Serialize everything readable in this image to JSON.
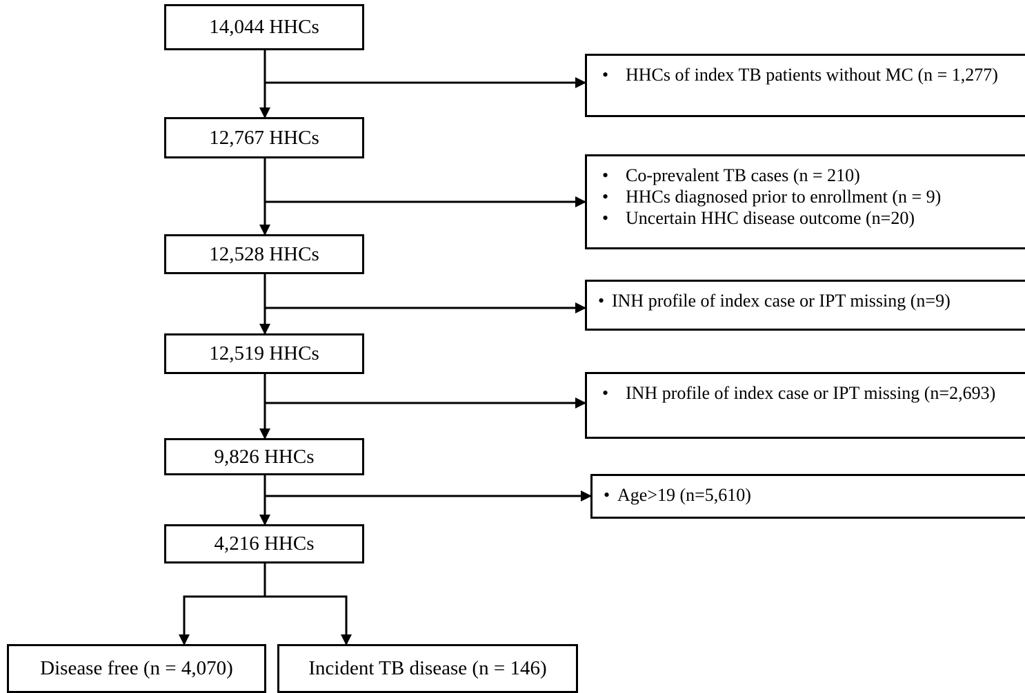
{
  "flow": {
    "steps": [
      "14,044 HHCs",
      "12,767 HHCs",
      "12,528 HHCs",
      "12,519 HHCs",
      "9,826 HHCs",
      "4,216 HHCs"
    ],
    "exclusions": [
      {
        "items": [
          "HHCs of index TB patients without MC (n = 1,277)"
        ]
      },
      {
        "items": [
          "Co-prevalent TB cases (n = 210)",
          "HHCs diagnosed prior to enrollment (n = 9)",
          "Uncertain HHC disease outcome (n=20)"
        ]
      },
      {
        "items": [
          "INH profile of index case or IPT missing (n=9)"
        ]
      },
      {
        "items": [
          "INH profile of index case or IPT missing (n=2,693)"
        ]
      },
      {
        "items": [
          "Age>19 (n=5,610)"
        ]
      }
    ],
    "outcomes": {
      "left": "Disease free (n = 4,070)",
      "right": "Incident TB disease (n = 146)"
    }
  }
}
